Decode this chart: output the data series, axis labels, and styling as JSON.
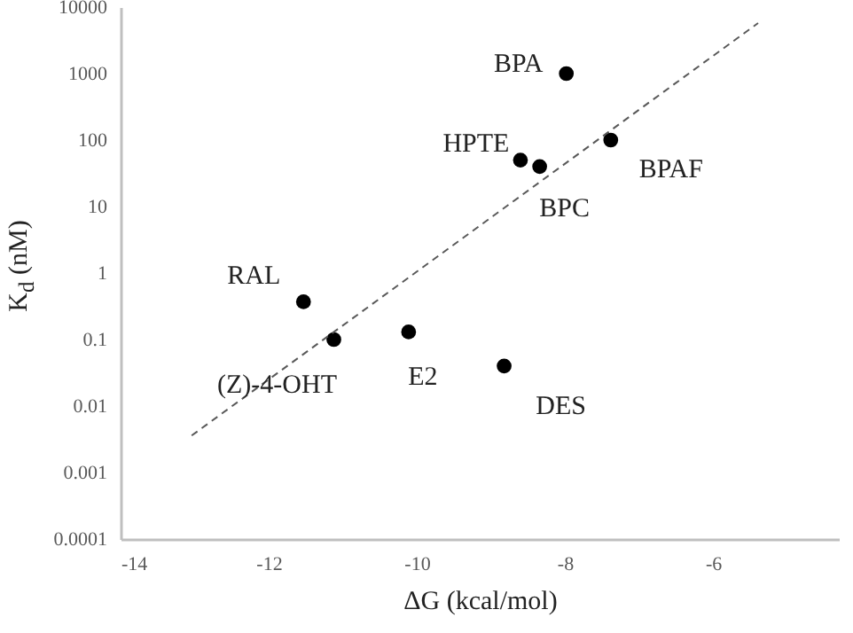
{
  "chart_data": {
    "type": "scatter",
    "xlabel": "ΔG (kcal/mol)",
    "ylabel": "K$_{d}$ (nM)",
    "log": "y",
    "xlim": [
      -14,
      -4.3
    ],
    "xticks": [
      -14,
      -12,
      -10,
      -8,
      -6
    ],
    "ylim": [
      0.0001,
      10000
    ],
    "yticks": [
      0.0001,
      0.001,
      0.01,
      0.1,
      1,
      10,
      100,
      1000,
      10000
    ],
    "grid": false,
    "series": [
      {
        "marker": "circle",
        "color": "#000000",
        "x": [
          -11.53,
          -11.12,
          -10.11,
          -8.82,
          -7.98,
          -8.6,
          -8.34,
          -7.38
        ],
        "values": [
          0.37,
          0.1,
          0.13,
          0.04,
          1000,
          50,
          40,
          100
        ]
      },
      {
        "type": "line",
        "color": "#595959",
        "line_style": "dashed",
        "x": [
          -13.04,
          -5.39
        ],
        "values": [
          0.0036,
          5750
        ]
      }
    ],
    "annotations": [
      {
        "text": "RAL",
        "x": -11.53,
        "y": 0.37
      },
      {
        "text": "(Z)-4-OHT",
        "x": -11.12,
        "y": 0.1
      },
      {
        "text": "E2",
        "x": -10.11,
        "y": 0.13
      },
      {
        "text": "DES",
        "x": -8.82,
        "y": 0.04
      },
      {
        "text": "BPA",
        "x": -7.98,
        "y": 1000
      },
      {
        "text": "HPTE",
        "x": -8.6,
        "y": 50
      },
      {
        "text": "BPC",
        "x": -8.34,
        "y": 40
      },
      {
        "text": "BPAF",
        "x": -7.38,
        "y": 100
      }
    ]
  }
}
